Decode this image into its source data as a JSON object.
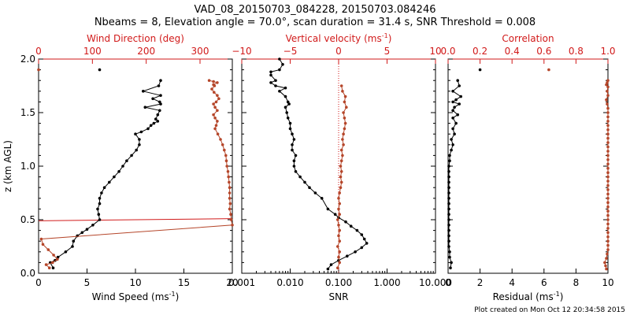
{
  "title_line1": "VAD_08_20150703_084228, 20150703.084246",
  "title_line2": "Nbeams = 8, Elevation angle = 70.0°, scan duration = 31.4 s, SNR Threshold = 0.008",
  "footer": "Plot created on Mon Oct 12 20:34:58 2015",
  "colors": {
    "primary": "#000000",
    "secondary": "#d11a1a",
    "secondary_markers": "#b5462a"
  },
  "chart_data": [
    {
      "type": "line",
      "ylabel_main": "z (km AGL)",
      "ylabel_sup": "",
      "ylabel_tail": "",
      "ylim": [
        0,
        2
      ],
      "yticks": [
        "0.0",
        "0.5",
        "1.0",
        "1.5",
        "2.0"
      ],
      "bottom_axis": {
        "label_main": "Wind Speed (ms",
        "label_sup": "-1",
        "label_tail": ")",
        "xlim": [
          0,
          20
        ],
        "ticks": [
          "0",
          "5",
          "10",
          "15",
          "20"
        ]
      },
      "top_axis": {
        "label_main": "Wind Direction (deg)",
        "label_sup": "",
        "label_tail": "",
        "xlim": [
          0,
          360
        ],
        "ticks": [
          "0",
          "100",
          "200",
          "300"
        ]
      },
      "series": [
        {
          "axis": "bottom",
          "x": [
            1.5,
            1.2,
            1.7,
            2.0,
            2.8,
            3.5,
            3.6,
            4.0,
            4.5,
            5.0,
            5.6,
            6.3,
            6.2,
            6.1,
            6.3,
            6.3,
            6.5,
            6.8,
            7.3,
            7.8,
            8.3,
            8.7,
            9.1,
            9.6,
            10.1,
            10.4,
            10.4,
            10.0,
            10.6,
            11.3,
            11.6,
            11.9,
            12.3,
            12.1,
            12.3,
            12.5,
            11.0,
            12.6,
            12.5,
            11.8,
            12.6,
            10.8,
            12.4,
            12.6
          ],
          "y": [
            0.05,
            0.1,
            0.12,
            0.15,
            0.2,
            0.25,
            0.3,
            0.35,
            0.38,
            0.41,
            0.45,
            0.5,
            0.55,
            0.6,
            0.65,
            0.7,
            0.75,
            0.8,
            0.85,
            0.9,
            0.95,
            1.0,
            1.05,
            1.1,
            1.15,
            1.2,
            1.25,
            1.3,
            1.32,
            1.35,
            1.38,
            1.4,
            1.42,
            1.44,
            1.48,
            1.52,
            1.55,
            1.58,
            1.6,
            1.63,
            1.66,
            1.7,
            1.75,
            1.8
          ]
        },
        {
          "axis": "bottom",
          "x": [
            6.3
          ],
          "y": [
            1.9
          ]
        },
        {
          "axis": "top",
          "x": [
            20,
            14,
            26,
            35,
            28,
            18,
            8,
            5,
            360,
            358,
            357,
            355,
            356,
            355,
            355,
            355,
            354,
            353,
            352,
            350,
            349,
            348,
            345,
            342,
            338,
            333,
            328,
            330,
            332,
            328,
            325,
            332,
            328,
            325,
            330,
            335,
            332,
            326,
            322,
            327,
            325,
            332,
            325,
            317
          ],
          "y": [
            0.05,
            0.08,
            0.1,
            0.13,
            0.17,
            0.22,
            0.27,
            0.32,
            0.45,
            0.5,
            0.55,
            0.6,
            0.65,
            0.7,
            0.75,
            0.8,
            0.85,
            0.9,
            0.95,
            1.0,
            1.05,
            1.1,
            1.15,
            1.2,
            1.25,
            1.3,
            1.35,
            1.38,
            1.42,
            1.45,
            1.48,
            1.52,
            1.55,
            1.58,
            1.6,
            1.63,
            1.66,
            1.69,
            1.72,
            1.75,
            1.76,
            1.78,
            1.79,
            1.8
          ]
        },
        {
          "axis": "top",
          "x": [
            0
          ],
          "y": [
            1.9
          ]
        }
      ],
      "reference_line": {
        "x1_deg": 0,
        "y1_km": 0.49,
        "x2_deg": 360,
        "y2_km": 0.51
      }
    },
    {
      "type": "scatter",
      "ylabel_main": "",
      "ylabel_sup": "",
      "ylabel_tail": "",
      "ylim": [
        0,
        2
      ],
      "xscale": "log",
      "bottom_axis": {
        "label_main": "SNR",
        "label_sup": "",
        "label_tail": "",
        "xlim": [
          0.001,
          10
        ],
        "ticks": [
          "0.001",
          "0.010",
          "0.100",
          "1.000",
          "10.000"
        ]
      },
      "top_axis": {
        "label_main": "Vertical velocity (ms",
        "label_sup": "-1",
        "label_tail": ")",
        "xlim": [
          -10,
          10
        ],
        "ticks": [
          "−10",
          "−5",
          "0",
          "5",
          "10"
        ]
      },
      "series": [
        {
          "axis": "bottom",
          "x": [
            0.06,
            0.07,
            0.1,
            0.15,
            0.22,
            0.3,
            0.38,
            0.34,
            0.3,
            0.24,
            0.18,
            0.14,
            0.1,
            0.085,
            0.06,
            0.045,
            0.033,
            0.025,
            0.02,
            0.016,
            0.013,
            0.012,
            0.012,
            0.013,
            0.011,
            0.011,
            0.012,
            0.011,
            0.01,
            0.01,
            0.009,
            0.0085,
            0.008,
            0.0095,
            0.009,
            0.008,
            0.006,
            0.008,
            0.005,
            0.004,
            0.005,
            0.004,
            0.004,
            0.006,
            0.007,
            0.006
          ],
          "y": [
            0.04,
            0.08,
            0.12,
            0.16,
            0.2,
            0.24,
            0.28,
            0.32,
            0.36,
            0.4,
            0.44,
            0.48,
            0.52,
            0.55,
            0.6,
            0.7,
            0.75,
            0.8,
            0.85,
            0.9,
            0.95,
            1.0,
            1.05,
            1.1,
            1.15,
            1.2,
            1.25,
            1.3,
            1.35,
            1.4,
            1.45,
            1.5,
            1.55,
            1.58,
            1.6,
            1.65,
            1.7,
            1.73,
            1.75,
            1.78,
            1.8,
            1.85,
            1.88,
            1.9,
            1.95,
            2.0
          ]
        },
        {
          "axis": "top",
          "x": [
            -0.1,
            0.1,
            0,
            0.1,
            -0.1,
            0.1,
            0,
            0.1,
            0,
            -0.1,
            0.1,
            0,
            0.1,
            0,
            0.1,
            0.2,
            0.3,
            0.2,
            0.3,
            0.2,
            0.3,
            0.4,
            0.3,
            0.5,
            0.4,
            0.5,
            0.6,
            0.7,
            0.6,
            0.5,
            0.8,
            0.6,
            0.7,
            0.4,
            0.3
          ],
          "y": [
            0.05,
            0.1,
            0.15,
            0.2,
            0.25,
            0.3,
            0.35,
            0.4,
            0.45,
            0.5,
            0.55,
            0.6,
            0.65,
            0.7,
            0.75,
            0.8,
            0.85,
            0.9,
            0.95,
            1.0,
            1.05,
            1.1,
            1.15,
            1.2,
            1.25,
            1.3,
            1.35,
            1.4,
            1.45,
            1.5,
            1.55,
            1.6,
            1.65,
            1.7,
            1.75
          ]
        }
      ],
      "zero_line_top": 0
    },
    {
      "type": "scatter",
      "ylabel_main": "",
      "ylabel_sup": "",
      "ylabel_tail": "",
      "ylim": [
        0,
        2
      ],
      "bottom_axis": {
        "label_main": "Residual (ms",
        "label_sup": "-1",
        "label_tail": ")",
        "xlim": [
          0,
          10
        ],
        "ticks": [
          "0",
          "2",
          "4",
          "6",
          "8",
          "10"
        ]
      },
      "top_axis": {
        "label_main": "Correlation",
        "label_sup": "",
        "label_tail": "",
        "xlim": [
          0,
          1
        ],
        "ticks": [
          "0.0",
          "0.2",
          "0.4",
          "0.6",
          "0.8",
          "1.0"
        ]
      },
      "series": [
        {
          "axis": "bottom",
          "x": [
            0.15,
            0.2,
            0.1,
            0.1,
            0.05,
            0.05,
            0.05,
            0.05,
            0.05,
            0.05,
            0.05,
            0.05,
            0.05,
            0.05,
            0.05,
            0.05,
            0.05,
            0.05,
            0.05,
            0.05,
            0.1,
            0.1,
            0.2,
            0.3,
            0.2,
            0.4,
            0.3,
            0.5,
            0.3,
            0.6,
            0.3,
            0.4,
            0.7,
            0.3,
            0.5,
            0.8,
            0.3,
            0.7,
            0.6
          ],
          "y": [
            0.05,
            0.1,
            0.15,
            0.2,
            0.25,
            0.3,
            0.35,
            0.4,
            0.45,
            0.5,
            0.55,
            0.6,
            0.65,
            0.7,
            0.75,
            0.8,
            0.85,
            0.9,
            0.95,
            1.0,
            1.05,
            1.1,
            1.15,
            1.2,
            1.25,
            1.3,
            1.35,
            1.4,
            1.45,
            1.48,
            1.52,
            1.55,
            1.58,
            1.6,
            1.62,
            1.65,
            1.7,
            1.75,
            1.8
          ]
        },
        {
          "axis": "bottom",
          "x": [
            2.0
          ],
          "y": [
            1.9
          ]
        },
        {
          "axis": "top",
          "x": [
            0.99,
            0.985,
            0.98,
            0.99,
            0.995,
            1.0,
            1.0,
            1.0,
            1.0,
            1.0,
            1.0,
            1.0,
            1.0,
            1.0,
            1.0,
            1.0,
            1.0,
            1.0,
            1.0,
            1.0,
            1.0,
            1.0,
            1.0,
            1.0,
            1.0,
            1.0,
            1.0,
            1.0,
            1.0,
            1.0,
            1.0,
            1.0,
            1.0,
            1.0,
            1.0,
            1.0,
            1.0,
            1.0,
            1.0,
            0.995,
            0.99,
            1.0,
            0.995,
            1.0,
            0.99,
            0.995,
            1.0
          ],
          "y": [
            0.04,
            0.07,
            0.1,
            0.14,
            0.18,
            0.22,
            0.26,
            0.3,
            0.34,
            0.38,
            0.42,
            0.46,
            0.5,
            0.54,
            0.58,
            0.62,
            0.66,
            0.7,
            0.74,
            0.78,
            0.82,
            0.86,
            0.9,
            0.94,
            0.98,
            1.02,
            1.06,
            1.1,
            1.14,
            1.18,
            1.22,
            1.26,
            1.3,
            1.34,
            1.38,
            1.42,
            1.46,
            1.5,
            1.54,
            1.58,
            1.62,
            1.66,
            1.7,
            1.74,
            1.76,
            1.78,
            1.8
          ]
        },
        {
          "axis": "top",
          "x": [
            0.63
          ],
          "y": [
            1.9
          ]
        }
      ]
    }
  ]
}
